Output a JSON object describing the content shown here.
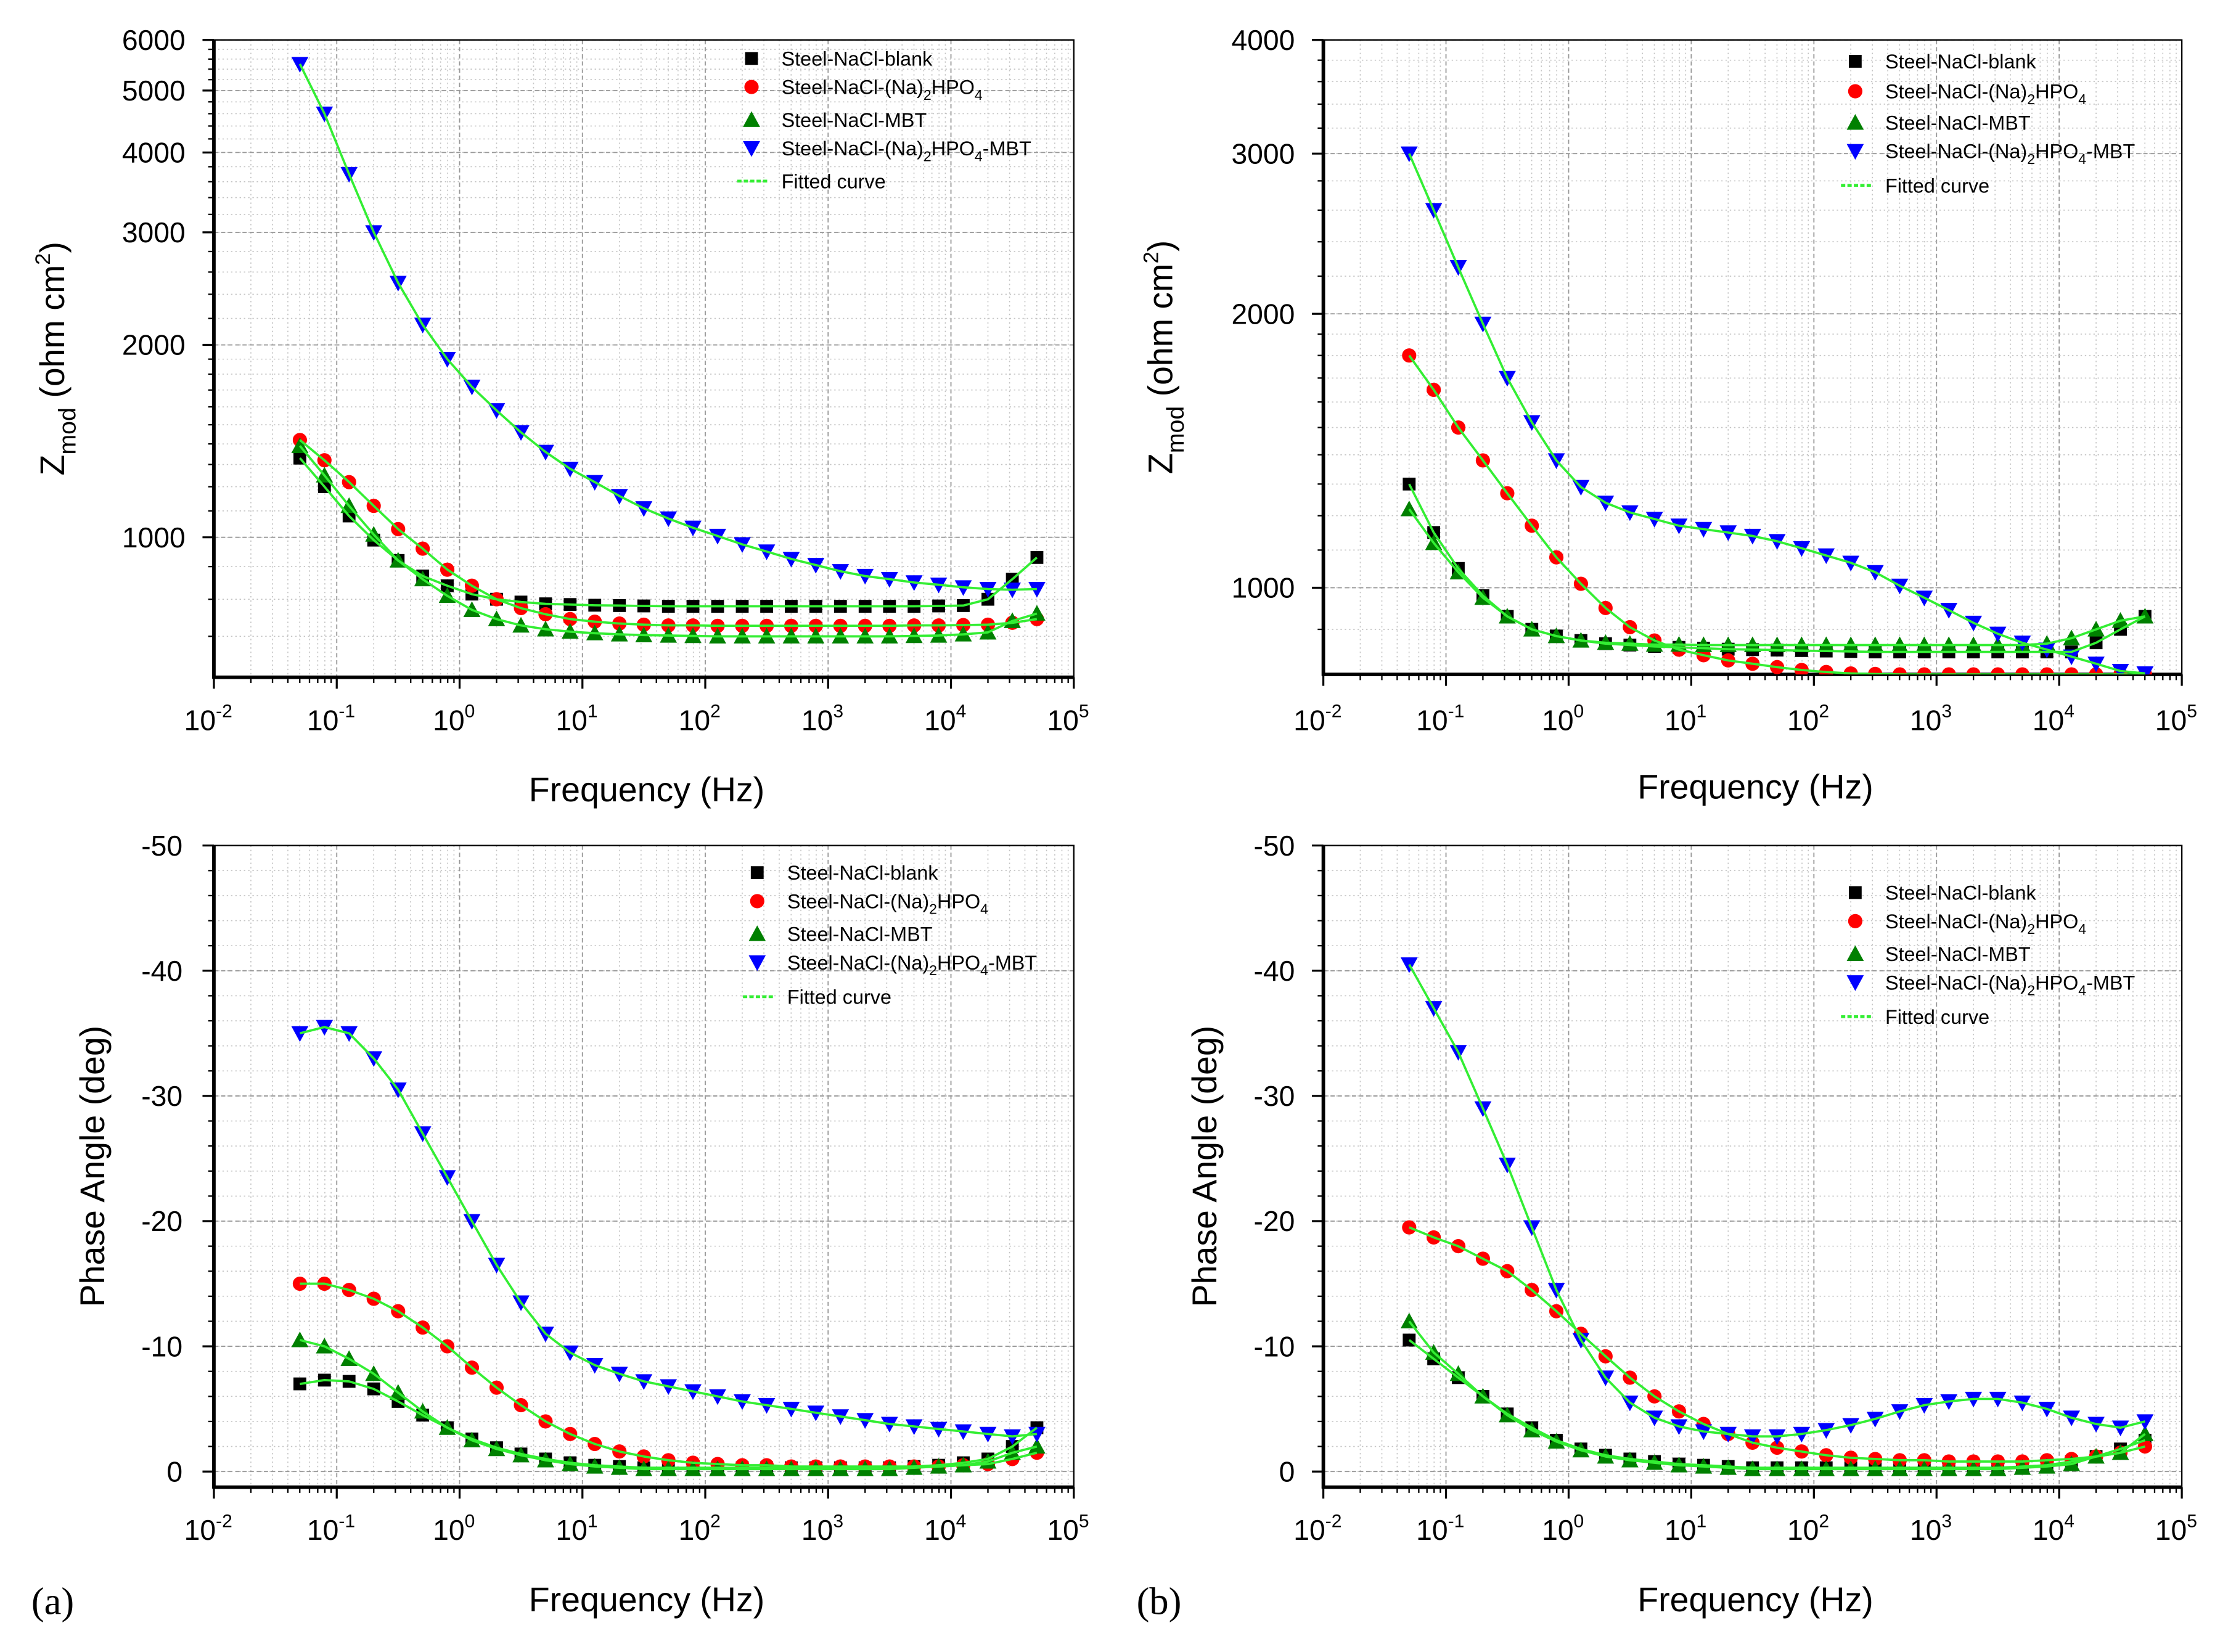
{
  "panel_labels": [
    "(a)",
    "(b)"
  ],
  "legend": {
    "series": [
      "Steel-NaCl-blank",
      "Steel-NaCl-(Na)2HPO4",
      "Steel-NaCl-MBT",
      "Steel-NaCl-(Na)2HPO4-MBT"
    ],
    "fit": "Fitted curve"
  },
  "colors": {
    "blank": "#000000",
    "hpo4": "#ff0000",
    "mbt": "#008000",
    "hpo4_mbt": "#0000ff",
    "fit": "#33ee33"
  },
  "chart_data": [
    {
      "type": "scatter",
      "panel": "a",
      "title": "",
      "xlabel": "Frequency (Hz)",
      "ylabel": {
        "main": "Z",
        "sub": "mod",
        "rest": " (ohm cm",
        "sup": "2",
        "end": ")"
      },
      "xscale": "log",
      "yscale": "log",
      "xlim": [
        0.01,
        100000
      ],
      "ylim": [
        604,
        6000
      ],
      "xtick_base": "10",
      "xtick_exponents": [
        -2,
        -1,
        0,
        1,
        2,
        3,
        4,
        5
      ],
      "yticks": [
        1000,
        2000,
        3000,
        4000,
        5000,
        6000
      ],
      "grid": true,
      "legend_position": "top-right",
      "x": [
        0.0501,
        0.0794,
        0.126,
        0.2,
        0.316,
        0.501,
        0.794,
        1.26,
        2,
        3.16,
        5.01,
        7.94,
        12.6,
        20,
        31.6,
        50.1,
        79.4,
        126,
        200,
        316,
        501,
        794,
        1260,
        2000,
        3160,
        5010,
        7940,
        12600,
        20000,
        31600,
        50100
      ],
      "series": [
        {
          "name": "Steel-NaCl-blank",
          "marker": "square",
          "values": [
            1330,
            1200,
            1080,
            990,
            920,
            870,
            840,
            815,
            800,
            792,
            787,
            785,
            783,
            782,
            781,
            780,
            780,
            780,
            780,
            780,
            780,
            780,
            780,
            780,
            780,
            780,
            781,
            782,
            800,
            860,
            930
          ]
        },
        {
          "name": "Steel-NaCl-(Na)2HPO4",
          "marker": "circle",
          "values": [
            1420,
            1320,
            1220,
            1120,
            1030,
            960,
            890,
            840,
            800,
            775,
            758,
            745,
            738,
            733,
            730,
            728,
            728,
            727,
            727,
            727,
            727,
            727,
            727,
            727,
            727,
            728,
            728,
            729,
            730,
            735,
            745
          ]
        },
        {
          "name": "Steel-NaCl-MBT",
          "marker": "triangle-up",
          "values": [
            1390,
            1250,
            1120,
            1010,
            920,
            860,
            810,
            770,
            745,
            728,
            718,
            712,
            708,
            705,
            703,
            702,
            701,
            700,
            700,
            700,
            700,
            700,
            700,
            700,
            700,
            701,
            702,
            705,
            710,
            740,
            760
          ]
        },
        {
          "name": "Steel-NaCl-(Na)2HPO4-MBT",
          "marker": "triangle-down",
          "values": [
            5500,
            4600,
            3700,
            3000,
            2500,
            2150,
            1900,
            1720,
            1580,
            1460,
            1360,
            1280,
            1220,
            1160,
            1110,
            1070,
            1035,
            1005,
            975,
            950,
            925,
            905,
            885,
            870,
            860,
            850,
            843,
            835,
            830,
            828,
            830
          ]
        }
      ]
    },
    {
      "type": "scatter",
      "panel": "b",
      "title": "",
      "xlabel": "Frequency (Hz)",
      "ylabel": {
        "main": "Z",
        "sub": "mod",
        "rest": " (ohm cm",
        "sup": "2",
        "end": ")"
      },
      "xscale": "log",
      "yscale": "log",
      "xlim": [
        0.01,
        100000
      ],
      "ylim": [
        803,
        4000
      ],
      "xtick_base": "10",
      "xtick_exponents": [
        -2,
        -1,
        0,
        1,
        2,
        3,
        4,
        5
      ],
      "yticks": [
        1000,
        2000,
        3000,
        4000
      ],
      "grid": true,
      "legend_position": "top-right",
      "x": [
        0.0501,
        0.0794,
        0.126,
        0.2,
        0.316,
        0.501,
        0.794,
        1.26,
        2,
        3.16,
        5.01,
        7.94,
        12.6,
        20,
        31.6,
        50.1,
        79.4,
        126,
        200,
        316,
        501,
        794,
        1260,
        2000,
        3160,
        5010,
        7940,
        12600,
        20000,
        31600,
        50100
      ],
      "series": [
        {
          "name": "Steel-NaCl-blank",
          "marker": "square",
          "values": [
            1300,
            1150,
            1050,
            980,
            930,
            900,
            885,
            875,
            868,
            865,
            862,
            860,
            858,
            856,
            855,
            854,
            853,
            852,
            851,
            850,
            850,
            850,
            850,
            850,
            850,
            850,
            850,
            850,
            870,
            900,
            930
          ]
        },
        {
          "name": "Steel-NaCl-(Na)2HPO4",
          "marker": "circle",
          "values": [
            1800,
            1650,
            1500,
            1380,
            1270,
            1170,
            1080,
            1010,
            950,
            905,
            875,
            855,
            843,
            832,
            825,
            818,
            812,
            808,
            805,
            804,
            803,
            803,
            803,
            803,
            803,
            803,
            803,
            803,
            803,
            803,
            803
          ]
        },
        {
          "name": "Steel-NaCl-MBT",
          "marker": "triangle-up",
          "values": [
            1220,
            1120,
            1040,
            975,
            930,
            900,
            885,
            875,
            870,
            868,
            866,
            866,
            865,
            865,
            865,
            865,
            865,
            865,
            865,
            865,
            865,
            865,
            865,
            865,
            865,
            865,
            868,
            880,
            900,
            920,
            930
          ]
        },
        {
          "name": "Steel-NaCl-(Na)2HPO4-MBT",
          "marker": "triangle-down",
          "values": [
            3000,
            2600,
            2250,
            1950,
            1700,
            1520,
            1380,
            1290,
            1240,
            1210,
            1190,
            1170,
            1160,
            1150,
            1140,
            1125,
            1105,
            1085,
            1065,
            1040,
            1005,
            975,
            945,
            915,
            890,
            870,
            855,
            840,
            825,
            810,
            805
          ]
        }
      ]
    },
    {
      "type": "scatter",
      "panel": "a",
      "title": "",
      "xlabel": "Frequency (Hz)",
      "ylabel": "Phase Angle (deg)",
      "xscale": "log",
      "yscale": "linear",
      "xlim": [
        0.01,
        100000
      ],
      "ylim": [
        1.25,
        -50
      ],
      "xtick_base": "10",
      "xtick_exponents": [
        -2,
        -1,
        0,
        1,
        2,
        3,
        4,
        5
      ],
      "yticks": [
        -50,
        -40,
        -30,
        -20,
        -10,
        0
      ],
      "grid": true,
      "legend_position": "top-right",
      "x": [
        0.0501,
        0.0794,
        0.126,
        0.2,
        0.316,
        0.501,
        0.794,
        1.26,
        2,
        3.16,
        5.01,
        7.94,
        12.6,
        20,
        31.6,
        50.1,
        79.4,
        126,
        200,
        316,
        501,
        794,
        1260,
        2000,
        3160,
        5010,
        7940,
        12600,
        20000,
        31600,
        50100
      ],
      "series": [
        {
          "name": "Steel-NaCl-blank",
          "marker": "square",
          "values": [
            -7,
            -7.3,
            -7.2,
            -6.6,
            -5.6,
            -4.5,
            -3.5,
            -2.6,
            -1.9,
            -1.4,
            -1,
            -0.7,
            -0.5,
            -0.4,
            -0.3,
            -0.3,
            -0.3,
            -0.3,
            -0.3,
            -0.3,
            -0.3,
            -0.3,
            -0.3,
            -0.3,
            -0.3,
            -0.4,
            -0.5,
            -0.7,
            -1,
            -2,
            -3.5
          ]
        },
        {
          "name": "Steel-NaCl-(Na)2HPO4",
          "marker": "circle",
          "values": [
            -15,
            -15,
            -14.5,
            -13.8,
            -12.8,
            -11.5,
            -10,
            -8.3,
            -6.7,
            -5.3,
            -4,
            -3,
            -2.2,
            -1.6,
            -1.2,
            -0.9,
            -0.7,
            -0.6,
            -0.5,
            -0.5,
            -0.4,
            -0.4,
            -0.4,
            -0.4,
            -0.4,
            -0.4,
            -0.4,
            -0.5,
            -0.6,
            -1,
            -1.5
          ]
        },
        {
          "name": "Steel-NaCl-MBT",
          "marker": "triangle-up",
          "values": [
            -10.5,
            -10,
            -9,
            -7.8,
            -6.3,
            -4.8,
            -3.5,
            -2.5,
            -1.8,
            -1.3,
            -0.9,
            -0.6,
            -0.4,
            -0.3,
            -0.2,
            -0.2,
            -0.2,
            -0.2,
            -0.2,
            -0.2,
            -0.2,
            -0.2,
            -0.2,
            -0.2,
            -0.2,
            -0.3,
            -0.4,
            -0.5,
            -0.8,
            -1.5,
            -2
          ]
        },
        {
          "name": "Steel-NaCl-(Na)2HPO4-MBT",
          "marker": "triangle-down",
          "values": [
            -35,
            -35.5,
            -35,
            -33,
            -30.5,
            -27,
            -23.5,
            -20,
            -16.5,
            -13.5,
            -11,
            -9.5,
            -8.5,
            -7.8,
            -7.2,
            -6.8,
            -6.4,
            -6,
            -5.6,
            -5.3,
            -5,
            -4.7,
            -4.4,
            -4.1,
            -3.8,
            -3.6,
            -3.4,
            -3.2,
            -3,
            -2.8,
            -3
          ]
        }
      ]
    },
    {
      "type": "scatter",
      "panel": "b",
      "title": "",
      "xlabel": "Frequency (Hz)",
      "ylabel": "Phase Angle (deg)",
      "xscale": "log",
      "yscale": "linear",
      "xlim": [
        0.01,
        100000
      ],
      "ylim": [
        1.25,
        -50
      ],
      "xtick_base": "10",
      "xtick_exponents": [
        -2,
        -1,
        0,
        1,
        2,
        3,
        4,
        5
      ],
      "yticks": [
        -50,
        -40,
        -30,
        -20,
        -10,
        0
      ],
      "grid": true,
      "legend_position": "top-right",
      "x": [
        0.0501,
        0.0794,
        0.126,
        0.2,
        0.316,
        0.501,
        0.794,
        1.26,
        2,
        3.16,
        5.01,
        7.94,
        12.6,
        20,
        31.6,
        50.1,
        79.4,
        126,
        200,
        316,
        501,
        794,
        1260,
        2000,
        3160,
        5010,
        7940,
        12600,
        20000,
        31600,
        50100
      ],
      "series": [
        {
          "name": "Steel-NaCl-blank",
          "marker": "square",
          "values": [
            -10.5,
            -9,
            -7.5,
            -6,
            -4.6,
            -3.5,
            -2.5,
            -1.8,
            -1.3,
            -1,
            -0.8,
            -0.6,
            -0.5,
            -0.4,
            -0.3,
            -0.3,
            -0.3,
            -0.3,
            -0.3,
            -0.3,
            -0.3,
            -0.3,
            -0.3,
            -0.3,
            -0.3,
            -0.4,
            -0.5,
            -0.8,
            -1.2,
            -1.8,
            -2.5
          ]
        },
        {
          "name": "Steel-NaCl-(Na)2HPO4",
          "marker": "circle",
          "values": [
            -19.5,
            -18.7,
            -18,
            -17,
            -16,
            -14.5,
            -12.8,
            -11,
            -9.2,
            -7.5,
            -6,
            -4.8,
            -3.8,
            -3,
            -2.3,
            -1.9,
            -1.6,
            -1.3,
            -1.1,
            -1,
            -0.9,
            -0.9,
            -0.8,
            -0.8,
            -0.8,
            -0.8,
            -0.9,
            -1,
            -1.2,
            -1.5,
            -2
          ]
        },
        {
          "name": "Steel-NaCl-MBT",
          "marker": "triangle-up",
          "values": [
            -12,
            -9.5,
            -7.8,
            -6,
            -4.5,
            -3.3,
            -2.4,
            -1.7,
            -1.2,
            -0.9,
            -0.7,
            -0.5,
            -0.4,
            -0.3,
            -0.2,
            -0.2,
            -0.2,
            -0.2,
            -0.2,
            -0.2,
            -0.2,
            -0.2,
            -0.2,
            -0.2,
            -0.2,
            -0.3,
            -0.4,
            -0.6,
            -1.2,
            -1.5,
            -3
          ]
        },
        {
          "name": "Steel-NaCl-(Na)2HPO4-MBT",
          "marker": "triangle-down",
          "values": [
            -40.5,
            -37,
            -33.5,
            -29,
            -24.5,
            -19.5,
            -14.5,
            -10.5,
            -7.5,
            -5.5,
            -4.3,
            -3.6,
            -3.2,
            -3,
            -2.8,
            -2.8,
            -3,
            -3.3,
            -3.7,
            -4.2,
            -4.8,
            -5.3,
            -5.6,
            -5.8,
            -5.8,
            -5.5,
            -5,
            -4.3,
            -3.8,
            -3.5,
            -4
          ]
        }
      ]
    }
  ]
}
